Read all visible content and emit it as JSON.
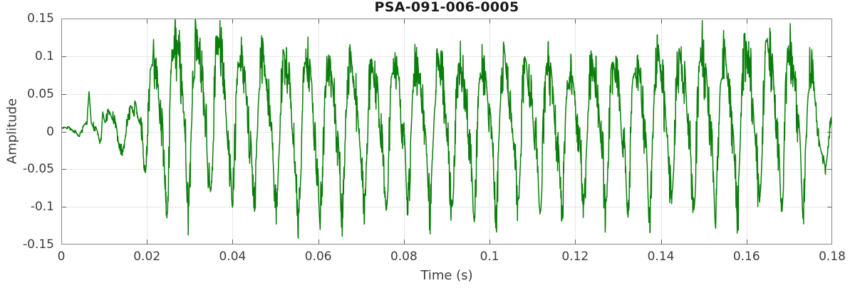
{
  "chart_data": {
    "type": "line",
    "title": "PSA-091-006-0005",
    "xlabel": "Time (s)",
    "ylabel": "Amplitude",
    "xlim": [
      0,
      0.18
    ],
    "ylim": [
      -0.15,
      0.15
    ],
    "grid": true,
    "box": true,
    "tick_direction": "in",
    "legend": "none",
    "xticks": {
      "values": [
        0,
        0.02,
        0.04,
        0.06,
        0.08,
        0.1,
        0.12,
        0.14,
        0.16,
        0.18
      ],
      "labels": [
        "0",
        "0.02",
        "0.04",
        "0.06",
        "0.08",
        "0.1",
        "0.12",
        "0.14",
        "0.16",
        "0.18"
      ]
    },
    "yticks": {
      "values": [
        -0.15,
        -0.1,
        -0.05,
        0,
        0.05,
        0.1,
        0.15
      ],
      "labels": [
        "-0.15",
        "-0.1",
        "-0.05",
        "0",
        "0.05",
        "0.1",
        "0.15"
      ]
    },
    "colors": {
      "line": "#0a7e0a",
      "axis": "#868686",
      "tick": "#5f5f5f",
      "grid": "#e7e7e7",
      "text": "#3c3c3c",
      "title": "#191919",
      "background": "#ffffff"
    },
    "line_width": 1.5,
    "signal": {
      "description": "Single green acoustic waveform: low-level noise from 0 to ~0.017 s, quasi-periodic ~195 Hz jagged oscillation from ~0.018 s (peak +0.133 near 0.028 s, troughs to -0.115 near 0.056-0.061 s, late swell to +0.12 near 0.163-0.170 s), decaying to small noise by 0.18 s",
      "carrier_hz": 195,
      "harmonic_amps": [
        1,
        0.42,
        0.2,
        0.1
      ],
      "harmonic_phases": [
        0,
        1.0,
        2.2,
        3.8
      ],
      "noise_level": 0.32,
      "ripple_hz": 640,
      "ripple_level": 0.14,
      "seed": 7,
      "samples": 3400,
      "envelope_keypoints": [
        [
          0.0,
          0.005,
          -0.005
        ],
        [
          0.004,
          0.008,
          -0.006
        ],
        [
          0.006,
          0.012,
          -0.009
        ],
        [
          0.009,
          0.02,
          -0.014
        ],
        [
          0.012,
          0.024,
          -0.024
        ],
        [
          0.015,
          0.024,
          -0.028
        ],
        [
          0.017,
          0.036,
          -0.026
        ],
        [
          0.019,
          0.058,
          -0.048
        ],
        [
          0.021,
          0.092,
          -0.082
        ],
        [
          0.024,
          0.108,
          -0.096
        ],
        [
          0.027,
          0.133,
          -0.1
        ],
        [
          0.03,
          0.126,
          -0.1
        ],
        [
          0.033,
          0.116,
          -0.096
        ],
        [
          0.036,
          0.126,
          -0.092
        ],
        [
          0.04,
          0.106,
          -0.094
        ],
        [
          0.044,
          0.098,
          -0.1
        ],
        [
          0.048,
          0.096,
          -0.106
        ],
        [
          0.052,
          0.092,
          -0.108
        ],
        [
          0.056,
          0.096,
          -0.114
        ],
        [
          0.061,
          0.092,
          -0.115
        ],
        [
          0.065,
          0.09,
          -0.107
        ],
        [
          0.07,
          0.092,
          -0.102
        ],
        [
          0.075,
          0.086,
          -0.1
        ],
        [
          0.08,
          0.094,
          -0.102
        ],
        [
          0.085,
          0.09,
          -0.098
        ],
        [
          0.09,
          0.094,
          -0.102
        ],
        [
          0.095,
          0.09,
          -0.108
        ],
        [
          0.1,
          0.096,
          -0.102
        ],
        [
          0.105,
          0.09,
          -0.108
        ],
        [
          0.11,
          0.09,
          -0.108
        ],
        [
          0.115,
          0.086,
          -0.104
        ],
        [
          0.12,
          0.086,
          -0.1
        ],
        [
          0.125,
          0.09,
          -0.1
        ],
        [
          0.13,
          0.092,
          -0.1
        ],
        [
          0.135,
          0.096,
          -0.104
        ],
        [
          0.14,
          0.1,
          -0.104
        ],
        [
          0.145,
          0.1,
          -0.1
        ],
        [
          0.15,
          0.104,
          -0.104
        ],
        [
          0.155,
          0.1,
          -0.11
        ],
        [
          0.159,
          0.106,
          -0.1
        ],
        [
          0.163,
          0.121,
          -0.098
        ],
        [
          0.167,
          0.115,
          -0.096
        ],
        [
          0.17,
          0.113,
          -0.098
        ],
        [
          0.1735,
          0.092,
          -0.096
        ],
        [
          0.1755,
          0.088,
          -0.07
        ],
        [
          0.177,
          0.01,
          -0.055
        ],
        [
          0.1785,
          -0.005,
          -0.05
        ],
        [
          0.1795,
          0.018,
          -0.035
        ],
        [
          0.18,
          0.02,
          -0.008
        ]
      ],
      "spikes": [
        [
          0.0065,
          0.04,
          0.0005
        ],
        [
          0.0097,
          0.028,
          0.0005
        ],
        [
          0.0135,
          -0.014,
          0.0006
        ],
        [
          0.0185,
          0.018,
          0.0008
        ]
      ]
    }
  }
}
